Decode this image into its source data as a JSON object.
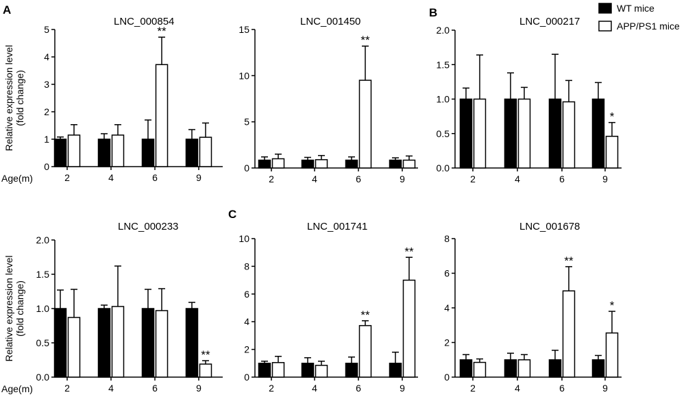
{
  "panel_labels": [
    "A",
    "B",
    "C"
  ],
  "legend": {
    "series": [
      {
        "name": "WT mice",
        "color": "#000000"
      },
      {
        "name": "APP/PS1 mice",
        "color": "#ffffff"
      }
    ]
  },
  "ylabel_line1": "Relative expression level",
  "ylabel_line2": "(fold change)",
  "xlabel": "Age(m)",
  "chart_data": [
    {
      "type": "bar",
      "title": "LNC_000854",
      "panel": "A",
      "categories": [
        "2",
        "4",
        "6",
        "9"
      ],
      "ylim": [
        0,
        5
      ],
      "yticks": [
        "0",
        "1",
        "2",
        "3",
        "4",
        "5"
      ],
      "series": [
        {
          "name": "WT mice",
          "values": [
            1.0,
            1.0,
            1.0,
            1.0
          ],
          "errors": [
            0.08,
            0.2,
            0.7,
            0.35
          ]
        },
        {
          "name": "APP/PS1 mice",
          "values": [
            1.15,
            1.15,
            3.72,
            1.07
          ],
          "errors": [
            0.38,
            0.38,
            1.0,
            0.52
          ]
        }
      ],
      "significance": [
        "",
        "",
        "**",
        ""
      ]
    },
    {
      "type": "bar",
      "title": "LNC_001450",
      "panel": "A",
      "categories": [
        "2",
        "4",
        "6",
        "9"
      ],
      "ylim": [
        0,
        15
      ],
      "yticks": [
        "0",
        "5",
        "10",
        "15"
      ],
      "series": [
        {
          "name": "WT mice",
          "values": [
            0.85,
            0.85,
            0.85,
            0.85
          ],
          "errors": [
            0.35,
            0.3,
            0.35,
            0.25
          ]
        },
        {
          "name": "APP/PS1 mice",
          "values": [
            1.0,
            0.9,
            9.5,
            0.85
          ],
          "errors": [
            0.5,
            0.45,
            3.7,
            0.45
          ]
        }
      ],
      "significance": [
        "",
        "",
        "**",
        ""
      ]
    },
    {
      "type": "bar",
      "title": "LNC_000217",
      "panel": "B",
      "categories": [
        "2",
        "4",
        "6",
        "9"
      ],
      "ylim": [
        0,
        2
      ],
      "yticks": [
        "0.0",
        "0.5",
        "1.0",
        "1.5",
        "2.0"
      ],
      "series": [
        {
          "name": "WT mice",
          "values": [
            1.0,
            1.0,
            1.0,
            1.0
          ],
          "errors": [
            0.16,
            0.38,
            0.65,
            0.24
          ]
        },
        {
          "name": "APP/PS1 mice",
          "values": [
            1.0,
            1.0,
            0.96,
            0.46
          ],
          "errors": [
            0.64,
            0.17,
            0.31,
            0.2
          ]
        }
      ],
      "significance": [
        "",
        "",
        "",
        "*"
      ]
    },
    {
      "type": "bar",
      "title": "LNC_000233",
      "panel": "A",
      "categories": [
        "2",
        "4",
        "6",
        "9"
      ],
      "ylim": [
        0,
        2
      ],
      "yticks": [
        "0.0",
        "0.5",
        "1.0",
        "1.5",
        "2.0"
      ],
      "series": [
        {
          "name": "WT mice",
          "values": [
            1.0,
            1.0,
            1.0,
            1.0
          ],
          "errors": [
            0.27,
            0.05,
            0.28,
            0.09
          ]
        },
        {
          "name": "APP/PS1 mice",
          "values": [
            0.87,
            1.03,
            0.97,
            0.19
          ],
          "errors": [
            0.41,
            0.59,
            0.32,
            0.05
          ]
        }
      ],
      "significance": [
        "",
        "",
        "",
        "**"
      ]
    },
    {
      "type": "bar",
      "title": "LNC_001741",
      "panel": "C",
      "categories": [
        "2",
        "4",
        "6",
        "9"
      ],
      "ylim": [
        0,
        10
      ],
      "yticks": [
        "0",
        "2",
        "4",
        "6",
        "8",
        "10"
      ],
      "series": [
        {
          "name": "WT mice",
          "values": [
            1.0,
            1.0,
            1.0,
            1.0
          ],
          "errors": [
            0.15,
            0.4,
            0.45,
            0.8
          ]
        },
        {
          "name": "APP/PS1 mice",
          "values": [
            1.05,
            0.85,
            3.72,
            7.0
          ],
          "errors": [
            0.45,
            0.3,
            0.35,
            1.65
          ]
        }
      ],
      "significance": [
        "",
        "",
        "**",
        "**"
      ]
    },
    {
      "type": "bar",
      "title": "LNC_001678",
      "panel": "C",
      "categories": [
        "2",
        "4",
        "6",
        "9"
      ],
      "ylim": [
        0,
        8
      ],
      "yticks": [
        "0",
        "2",
        "4",
        "6",
        "8"
      ],
      "series": [
        {
          "name": "WT mice",
          "values": [
            1.0,
            1.0,
            1.0,
            1.0
          ],
          "errors": [
            0.3,
            0.38,
            0.55,
            0.25
          ]
        },
        {
          "name": "APP/PS1 mice",
          "values": [
            0.85,
            1.0,
            4.98,
            2.55
          ],
          "errors": [
            0.2,
            0.3,
            1.4,
            1.25
          ]
        }
      ],
      "significance": [
        "",
        "",
        "**",
        "*"
      ]
    }
  ]
}
